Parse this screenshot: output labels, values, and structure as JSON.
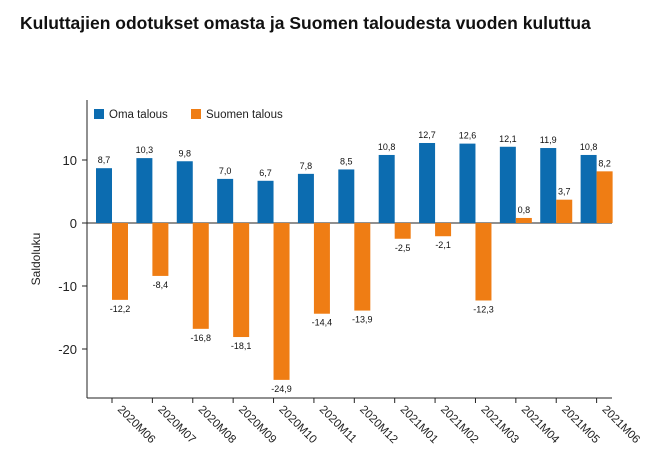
{
  "title": "Kuluttajien odotukset omasta ja Suomen taloudesta vuoden kuluttua",
  "chart_data": {
    "type": "bar",
    "title": "Kuluttajien odotukset omasta ja Suomen taloudesta vuoden kuluttua",
    "xlabel": "",
    "ylabel": "Saldoluku",
    "ylim": [
      -27,
      19
    ],
    "yticks": [
      -20,
      -10,
      0,
      10
    ],
    "legend": "top-left",
    "categories": [
      "2020M06",
      "2020M07",
      "2020M08",
      "2020M09",
      "2020M10",
      "2020M11",
      "2020M12",
      "2021M01",
      "2021M02",
      "2021M03",
      "2021M04",
      "2021M05",
      "2021M06"
    ],
    "series": [
      {
        "name": "Oma talous",
        "color": "#0c6cb0",
        "values": [
          8.7,
          10.3,
          9.8,
          7.0,
          6.7,
          7.8,
          8.5,
          10.8,
          12.7,
          12.6,
          12.1,
          11.9,
          10.8
        ],
        "labels": [
          "8,7",
          "10,3",
          "9,8",
          "7,0",
          "6,7",
          "7,8",
          "8,5",
          "10,8",
          "12,7",
          "12,6",
          "12,1",
          "11,9",
          "10,8"
        ]
      },
      {
        "name": "Suomen talous",
        "color": "#ef7d14",
        "values": [
          -12.2,
          -8.4,
          -16.8,
          -18.1,
          -24.9,
          -14.4,
          -13.9,
          -2.5,
          -2.1,
          -12.3,
          0.8,
          3.7,
          8.2
        ],
        "labels": [
          "-12,2",
          "-8,4",
          "-16,8",
          "-18,1",
          "-24,9",
          "-14,4",
          "-13,9",
          "-2,5",
          "-2,1",
          "-12,3",
          "0,8",
          "3,7",
          "8,2"
        ]
      }
    ]
  }
}
